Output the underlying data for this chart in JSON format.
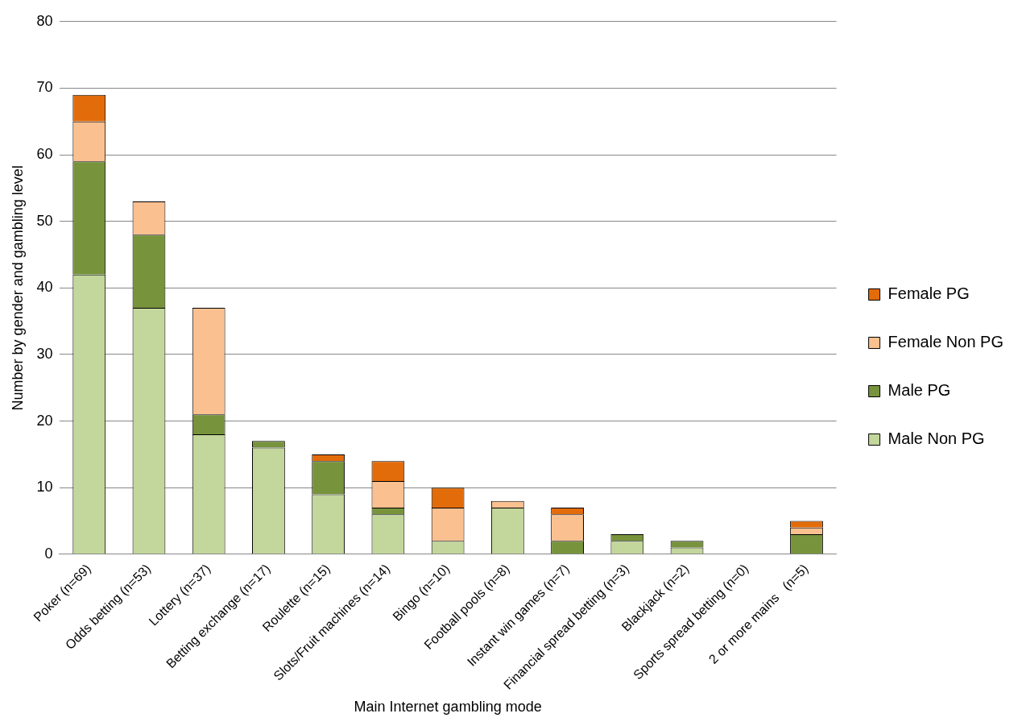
{
  "chart_data": {
    "type": "bar",
    "stacked": true,
    "xlabel": "Main Internet gambling mode",
    "ylabel": "Number by gender and gambling level",
    "categories": [
      "Poker (n=69)",
      "Odds betting (n=53)",
      "Lottery (n=37)",
      "Betting exchange (n=17)",
      "Roulette (n=15)",
      "Slots/Fruit machines (n=14)",
      "Bingo (n=10)",
      "Football pools (n=8)",
      "Instant win games (n=7)",
      "Financial spread betting (n=3)",
      "Blackjack (n=2)",
      "Sports spread betting (n=0)",
      "2 or more mains   (n=5)"
    ],
    "series": [
      {
        "name": "Male Non PG",
        "color": "#c3d69b",
        "values": [
          42,
          37,
          18,
          16,
          9,
          6,
          2,
          7,
          0,
          2,
          1,
          0,
          0
        ]
      },
      {
        "name": "Male PG",
        "color": "#77933c",
        "values": [
          17,
          11,
          3,
          1,
          5,
          1,
          0,
          0,
          2,
          1,
          1,
          0,
          3
        ]
      },
      {
        "name": "Female Non PG",
        "color": "#fac090",
        "values": [
          6,
          5,
          16,
          0,
          0,
          4,
          5,
          1,
          4,
          0,
          0,
          0,
          1
        ]
      },
      {
        "name": "Female PG",
        "color": "#e36c0a",
        "values": [
          4,
          0,
          0,
          0,
          1,
          3,
          3,
          0,
          1,
          0,
          0,
          0,
          1
        ]
      }
    ],
    "ylim": [
      0,
      80
    ],
    "yticks": [
      0,
      10,
      20,
      30,
      40,
      50,
      60,
      70,
      80
    ],
    "grid": "y",
    "legend": "right"
  }
}
